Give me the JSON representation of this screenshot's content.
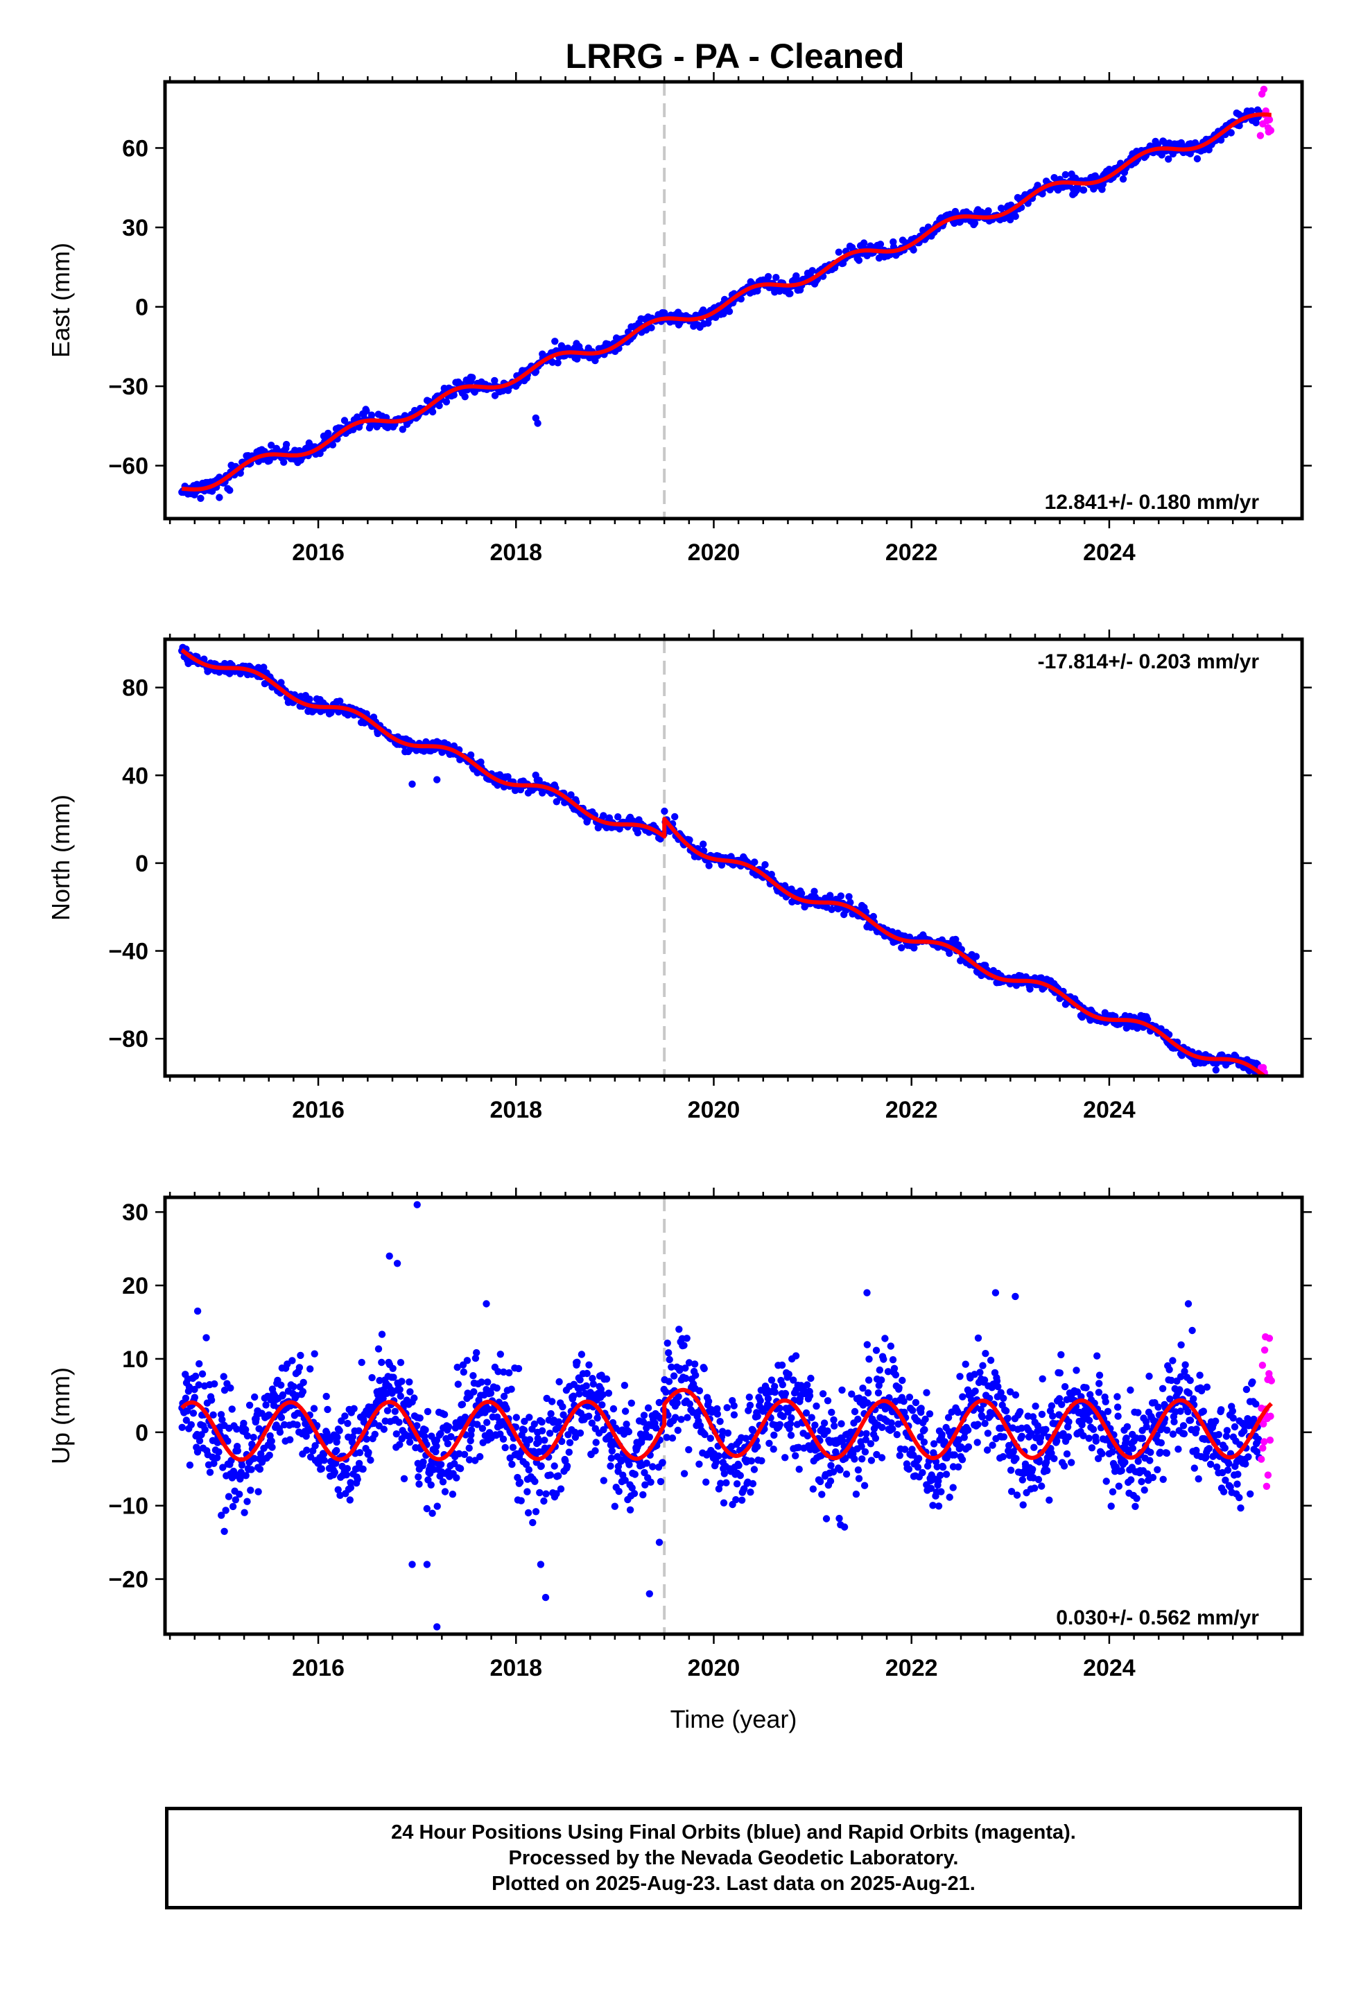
{
  "title": "LRRG  - PA - Cleaned",
  "xlabel": "Time (year)",
  "footer": {
    "line1": "24 Hour Positions Using Final Orbits (blue) and Rapid Orbits (magenta).",
    "line2": "Processed by the Nevada Geodetic Laboratory.",
    "line3": "Plotted on 2025-Aug-23. Last data on 2025-Aug-21."
  },
  "colors": {
    "final_orbits": "#0000ff",
    "rapid_orbits": "#ff00ff",
    "model_fit": "#ff0000",
    "event_line": "#c8c8c8",
    "axes": "#000000"
  },
  "chart_data": [
    {
      "type": "scatter",
      "ylabel": "East (mm)",
      "rate_text": "12.841+/- 0.180 mm/yr",
      "rate_position": "bottom-right",
      "xlim": [
        2014.45,
        2025.95
      ],
      "ylim": [
        -80,
        85
      ],
      "xticks": [
        2016,
        2018,
        2020,
        2022,
        2024
      ],
      "yticks": [
        -60,
        -30,
        0,
        30,
        60
      ],
      "event_x": 2019.5,
      "grid": false,
      "series": [
        {
          "name": "Final Orbits (blue)",
          "role": "final",
          "sampling": {
            "start": 2014.62,
            "end": 2025.52,
            "step": 0.0105
          },
          "model": {
            "ref_epoch": 2019.5,
            "value_at_ref": -6.5,
            "rate": 12.841,
            "annual_amplitude": 2.5,
            "annual_phase": 0.15,
            "offset_at_event": 0,
            "scatter_sd": 1.5,
            "seed": 11,
            "outliers": [
              [
                2018.2,
                -42
              ],
              [
                2018.22,
                -44
              ],
              [
                2015.0,
                -72
              ]
            ]
          }
        },
        {
          "name": "Rapid Orbits (magenta)",
          "role": "rapid",
          "sampling": {
            "start": 2025.53,
            "end": 2025.64,
            "step": 0.0105
          },
          "model": {
            "ref_epoch": 2019.5,
            "value_at_ref": -6.5,
            "rate": 12.841,
            "annual_amplitude": 2.5,
            "annual_phase": 0.15,
            "offset_at_event": 0,
            "scatter_sd": 4.0,
            "seed": 12
          }
        },
        {
          "name": "Model fit",
          "role": "fit",
          "sampling": {
            "start": 2014.62,
            "end": 2025.64,
            "step": 0.005
          },
          "model": {
            "ref_epoch": 2019.5,
            "value_at_ref": -6.5,
            "rate": 12.841,
            "annual_amplitude": 2.5,
            "annual_phase": 0.15,
            "offset_at_event": 0
          }
        }
      ]
    },
    {
      "type": "scatter",
      "ylabel": "North (mm)",
      "rate_text": "-17.814+/- 0.203 mm/yr",
      "rate_position": "top-right",
      "xlim": [
        2014.45,
        2025.95
      ],
      "ylim": [
        -97,
        102
      ],
      "xticks": [
        2016,
        2018,
        2020,
        2022,
        2024
      ],
      "yticks": [
        -80,
        -40,
        0,
        40,
        80
      ],
      "event_x": 2019.5,
      "grid": false,
      "series": [
        {
          "name": "Final Orbits (blue)",
          "role": "final",
          "sampling": {
            "start": 2014.62,
            "end": 2025.52,
            "step": 0.0105
          },
          "model": {
            "ref_epoch": 2019.5,
            "value_at_ref": 10.5,
            "rate": -17.814,
            "annual_amplitude": 2.8,
            "annual_phase": 0.1,
            "offset_at_event": 8,
            "scatter_sd": 1.6,
            "seed": 21,
            "outliers": [
              [
                2016.95,
                36
              ],
              [
                2017.2,
                38
              ]
            ]
          }
        },
        {
          "name": "Rapid Orbits (magenta)",
          "role": "rapid",
          "sampling": {
            "start": 2025.53,
            "end": 2025.64,
            "step": 0.0105
          },
          "model": {
            "ref_epoch": 2019.5,
            "value_at_ref": 10.5,
            "rate": -17.814,
            "annual_amplitude": 2.8,
            "annual_phase": 0.1,
            "offset_at_event": 8,
            "scatter_sd": 2.5,
            "seed": 22
          }
        },
        {
          "name": "Model fit",
          "role": "fit",
          "sampling": {
            "start": 2014.62,
            "end": 2025.64,
            "step": 0.005
          },
          "model": {
            "ref_epoch": 2019.5,
            "value_at_ref": 10.5,
            "rate": -17.814,
            "annual_amplitude": 2.8,
            "annual_phase": 0.1,
            "offset_at_event": 8
          }
        }
      ]
    },
    {
      "type": "scatter",
      "ylabel": "Up (mm)",
      "rate_text": "0.030+/- 0.562 mm/yr",
      "rate_position": "bottom-right",
      "xlim": [
        2014.45,
        2025.95
      ],
      "ylim": [
        -27.5,
        32
      ],
      "xticks": [
        2016,
        2018,
        2020,
        2022,
        2024
      ],
      "yticks": [
        -20,
        -10,
        0,
        10,
        20,
        30
      ],
      "event_x": 2019.5,
      "grid": false,
      "series": [
        {
          "name": "Final Orbits (blue)",
          "role": "final",
          "sampling": {
            "start": 2014.62,
            "end": 2025.52,
            "step": 0.0055
          },
          "model": {
            "ref_epoch": 2019.5,
            "value_at_ref": 0.3,
            "rate": 0.03,
            "annual_amplitude": 3.9,
            "annual_phase": 0.47,
            "offset_at_event": 2.8,
            "scatter_sd": 3.6,
            "seed": 31,
            "outliers": [
              [
                2017.0,
                31
              ],
              [
                2016.72,
                24
              ],
              [
                2016.8,
                23
              ],
              [
                2017.2,
                -26.5
              ],
              [
                2018.3,
                -22.5
              ],
              [
                2019.35,
                -22
              ],
              [
                2017.1,
                -18
              ],
              [
                2021.55,
                19
              ],
              [
                2022.85,
                19
              ],
              [
                2023.05,
                18.5
              ],
              [
                2017.7,
                17.5
              ],
              [
                2024.8,
                17.5
              ],
              [
                2014.78,
                16.5
              ],
              [
                2018.25,
                -18
              ],
              [
                2019.45,
                -15
              ],
              [
                2016.95,
                -18
              ],
              [
                2015.05,
                -13.5
              ]
            ]
          }
        },
        {
          "name": "Rapid Orbits (magenta)",
          "role": "rapid",
          "sampling": {
            "start": 2025.53,
            "end": 2025.64,
            "step": 0.006
          },
          "model": {
            "ref_epoch": 2019.5,
            "value_at_ref": 0.3,
            "rate": 0.03,
            "annual_amplitude": 3.9,
            "annual_phase": 0.47,
            "offset_at_event": 2.8,
            "scatter_sd": 5.5,
            "seed": 32,
            "outliers": [
              [
                2025.58,
                13
              ],
              [
                2025.62,
                12.8
              ]
            ]
          }
        },
        {
          "name": "Model fit",
          "role": "fit",
          "sampling": {
            "start": 2014.62,
            "end": 2025.64,
            "step": 0.005
          },
          "model": {
            "ref_epoch": 2019.5,
            "value_at_ref": 0.3,
            "rate": 0.03,
            "annual_amplitude": 3.9,
            "annual_phase": 0.47,
            "offset_at_event": 2.8
          }
        }
      ]
    }
  ]
}
